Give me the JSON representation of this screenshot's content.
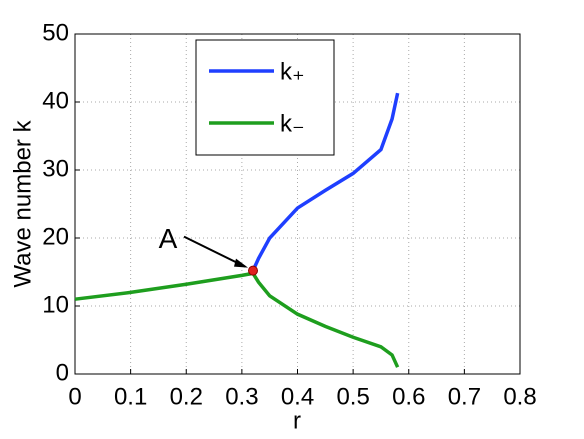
{
  "chart_data": {
    "type": "line",
    "xlabel": "r",
    "ylabel": "Wave number k",
    "xlim": [
      0,
      0.8
    ],
    "xticks": [
      0,
      0.1,
      0.2,
      0.3,
      0.4,
      0.5,
      0.6,
      0.7,
      0.8
    ],
    "ylim": [
      0,
      50
    ],
    "yticks": [
      0,
      10,
      20,
      30,
      40,
      50
    ],
    "grid": true,
    "legend": "upper center",
    "series": [
      {
        "name": "k₊",
        "color": "#1f3fff",
        "x": [
          0.32,
          0.33,
          0.35,
          0.4,
          0.45,
          0.5,
          0.55,
          0.57,
          0.58
        ],
        "values": [
          15.2,
          17,
          20,
          24.4,
          27,
          29.5,
          33,
          37.5,
          41.3
        ]
      },
      {
        "name": "k₋",
        "color": "#1e9e1e",
        "x": [
          0,
          0.1,
          0.2,
          0.3,
          0.32,
          0.33,
          0.35,
          0.4,
          0.45,
          0.5,
          0.55,
          0.57,
          0.58
        ],
        "values": [
          11,
          12,
          13.2,
          14.5,
          14.8,
          13.5,
          11.5,
          8.8,
          7,
          5.4,
          4,
          2.8,
          1
        ]
      }
    ],
    "annotations": [
      {
        "text": "A",
        "x": 0.32,
        "y": 15.2,
        "color": "#e02020"
      }
    ]
  }
}
